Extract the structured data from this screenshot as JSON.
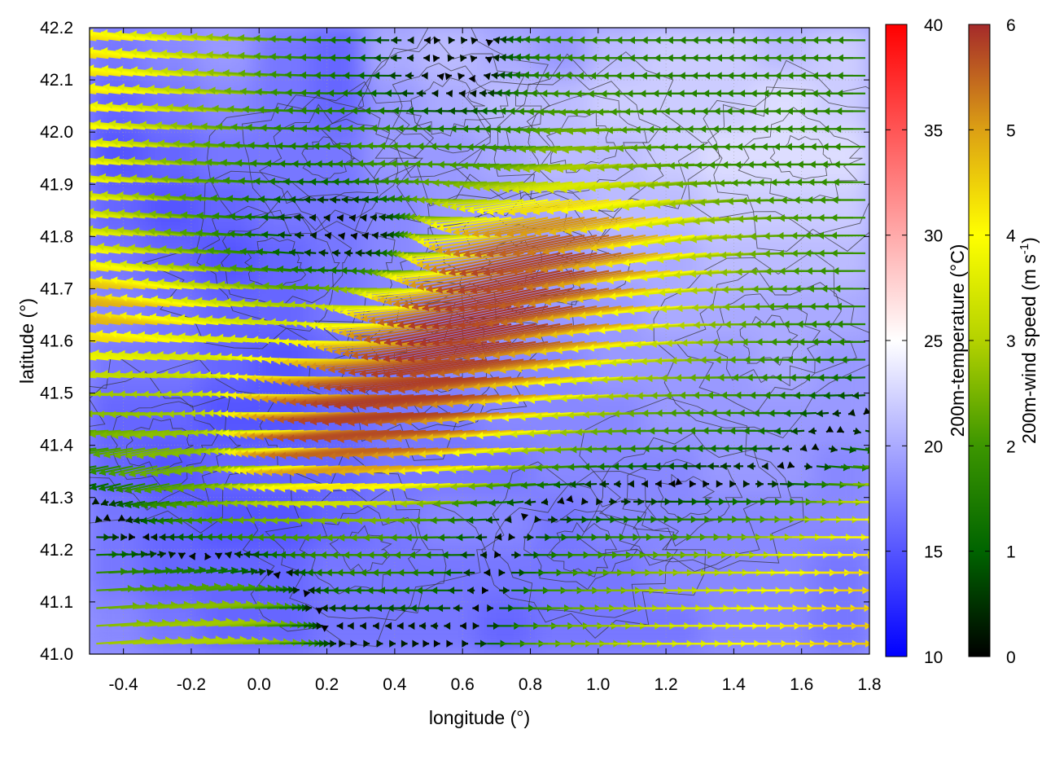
{
  "chart_data": {
    "type": "heatmap",
    "title": "",
    "xlabel": "longitude (°)",
    "ylabel": "latitude (°)",
    "xlim": [
      -0.5,
      1.8
    ],
    "ylim": [
      41.0,
      42.2
    ],
    "x_ticks": [
      "-0.4",
      "-0.2",
      "0.0",
      "0.2",
      "0.4",
      "0.6",
      "0.8",
      "1.0",
      "1.2",
      "1.4",
      "1.6",
      "1.8"
    ],
    "y_ticks": [
      "41.0",
      "41.1",
      "41.2",
      "41.3",
      "41.4",
      "41.5",
      "41.6",
      "41.7",
      "41.8",
      "41.9",
      "42.0",
      "42.1",
      "42.2"
    ],
    "grid": true,
    "layers": [
      "temperature color map",
      "terrain contours",
      "wind vectors"
    ],
    "colorbars": [
      {
        "label": "200m-temperature (°C)",
        "range": [
          10,
          40
        ],
        "ticks": [
          "10",
          "15",
          "20",
          "25",
          "30",
          "35",
          "40"
        ],
        "colors": [
          "#0000ff",
          "#ffffff",
          "#ff0000"
        ]
      },
      {
        "label": "200m-wind speed (m s-1)",
        "label_main": "200m-wind speed (m s",
        "label_sup": "-1",
        "label_tail": ")",
        "range": [
          0,
          6
        ],
        "ticks": [
          "0",
          "1",
          "2",
          "3",
          "4",
          "5",
          "6"
        ],
        "colors": [
          "#000000",
          "#006400",
          "#3c9600",
          "#b4d200",
          "#ffff00",
          "#dca014",
          "#a52a2a"
        ]
      }
    ],
    "temperature_field_approx": [
      [
        17,
        18,
        19,
        17,
        16,
        20,
        21,
        20,
        19,
        21,
        22,
        22,
        21,
        22
      ],
      [
        16,
        17,
        18,
        17,
        16,
        19,
        20,
        21,
        21,
        22,
        22,
        22,
        23,
        22
      ],
      [
        15,
        16,
        17,
        17,
        17,
        19,
        19,
        20,
        21,
        21,
        22,
        23,
        23,
        23
      ],
      [
        16,
        15,
        16,
        17,
        17,
        18,
        19,
        19,
        20,
        21,
        21,
        22,
        22,
        22
      ],
      [
        17,
        16,
        15,
        16,
        17,
        18,
        19,
        19,
        19,
        20,
        20,
        21,
        21,
        21
      ],
      [
        18,
        17,
        16,
        16,
        17,
        18,
        18,
        19,
        19,
        19,
        20,
        20,
        20,
        20
      ],
      [
        17,
        17,
        16,
        15,
        16,
        17,
        18,
        18,
        18,
        19,
        19,
        19,
        20,
        19
      ],
      [
        16,
        16,
        15,
        15,
        16,
        17,
        17,
        18,
        18,
        18,
        19,
        19,
        19,
        19
      ],
      [
        16,
        15,
        16,
        16,
        16,
        17,
        17,
        17,
        18,
        18,
        18,
        19,
        19,
        18
      ],
      [
        17,
        16,
        15,
        15,
        16,
        17,
        18,
        18,
        17,
        18,
        18,
        18,
        18,
        18
      ],
      [
        17,
        16,
        16,
        16,
        17,
        17,
        17,
        17,
        17,
        17,
        18,
        18,
        18,
        17
      ],
      [
        18,
        17,
        16,
        16,
        17,
        17,
        17,
        16,
        17,
        17,
        17,
        18,
        18,
        17
      ]
    ],
    "wind_field_approx": [
      {
        "lon": -0.45,
        "lat": 42.12,
        "u": -4.5,
        "v": 0.6
      },
      {
        "lon": -0.3,
        "lat": 42.12,
        "u": -4.0,
        "v": 0.5
      },
      {
        "lon": -0.15,
        "lat": 42.12,
        "u": -3.5,
        "v": 0.3
      },
      {
        "lon": 0.0,
        "lat": 42.12,
        "u": -2.5,
        "v": 0.2
      },
      {
        "lon": 0.2,
        "lat": 42.12,
        "u": -1.5,
        "v": 0.0
      },
      {
        "lon": 0.4,
        "lat": 42.12,
        "u": -1.0,
        "v": 0.0
      },
      {
        "lon": 0.6,
        "lat": 42.12,
        "u": 1.2,
        "v": 0.0
      },
      {
        "lon": 0.8,
        "lat": 42.12,
        "u": -1.5,
        "v": 0.1
      },
      {
        "lon": 1.0,
        "lat": 42.12,
        "u": -1.8,
        "v": 0.0
      },
      {
        "lon": 1.2,
        "lat": 42.12,
        "u": -1.6,
        "v": 0.0
      },
      {
        "lon": 1.4,
        "lat": 42.12,
        "u": -1.4,
        "v": 0.0
      },
      {
        "lon": 1.6,
        "lat": 42.12,
        "u": -1.8,
        "v": 0.0
      },
      {
        "lon": 1.75,
        "lat": 42.12,
        "u": -1.5,
        "v": 0.0
      },
      {
        "lon": -0.45,
        "lat": 41.95,
        "u": -4.2,
        "v": 0.5
      },
      {
        "lon": -0.3,
        "lat": 41.95,
        "u": -3.5,
        "v": 0.3
      },
      {
        "lon": -0.15,
        "lat": 41.95,
        "u": -2.5,
        "v": 0.2
      },
      {
        "lon": 0.0,
        "lat": 41.95,
        "u": -1.8,
        "v": 0.1
      },
      {
        "lon": 0.2,
        "lat": 41.95,
        "u": -1.2,
        "v": 0.0
      },
      {
        "lon": 0.4,
        "lat": 41.95,
        "u": -2.5,
        "v": 0.1
      },
      {
        "lon": 0.6,
        "lat": 41.95,
        "u": -2.0,
        "v": 0.0
      },
      {
        "lon": 0.8,
        "lat": 41.95,
        "u": -1.5,
        "v": 0.0
      },
      {
        "lon": 1.0,
        "lat": 41.95,
        "u": -3.0,
        "v": -0.3
      },
      {
        "lon": 1.2,
        "lat": 41.95,
        "u": -2.0,
        "v": 0.0
      },
      {
        "lon": 1.4,
        "lat": 41.95,
        "u": -1.8,
        "v": 0.0
      },
      {
        "lon": 1.6,
        "lat": 41.95,
        "u": -1.6,
        "v": 0.0
      },
      {
        "lon": 1.75,
        "lat": 41.95,
        "u": -1.8,
        "v": 0.0
      },
      {
        "lon": -0.45,
        "lat": 41.8,
        "u": -4.0,
        "v": 0.6
      },
      {
        "lon": -0.3,
        "lat": 41.8,
        "u": -2.8,
        "v": 0.3
      },
      {
        "lon": -0.15,
        "lat": 41.8,
        "u": -2.2,
        "v": 0.2
      },
      {
        "lon": 0.0,
        "lat": 41.8,
        "u": -1.0,
        "v": 0.0
      },
      {
        "lon": 0.2,
        "lat": 41.8,
        "u": 0.6,
        "v": 0.0
      },
      {
        "lon": 0.4,
        "lat": 41.8,
        "u": 0.6,
        "v": 0.0
      },
      {
        "lon": 0.6,
        "lat": 41.8,
        "u": -3.0,
        "v": 0.4
      },
      {
        "lon": 0.8,
        "lat": 41.8,
        "u": -5.8,
        "v": -1.4
      },
      {
        "lon": 1.0,
        "lat": 41.8,
        "u": -6.0,
        "v": -1.2
      },
      {
        "lon": 1.2,
        "lat": 41.8,
        "u": -5.0,
        "v": -1.0
      },
      {
        "lon": 1.4,
        "lat": 41.8,
        "u": -3.0,
        "v": -0.3
      },
      {
        "lon": 1.6,
        "lat": 41.8,
        "u": -2.5,
        "v": 0.0
      },
      {
        "lon": 1.75,
        "lat": 41.8,
        "u": -1.8,
        "v": 0.0
      },
      {
        "lon": -0.45,
        "lat": 41.65,
        "u": -5.0,
        "v": 0.8
      },
      {
        "lon": -0.3,
        "lat": 41.65,
        "u": -5.5,
        "v": 0.8
      },
      {
        "lon": -0.15,
        "lat": 41.65,
        "u": -4.0,
        "v": 0.5
      },
      {
        "lon": 0.0,
        "lat": 41.65,
        "u": -3.5,
        "v": 0.4
      },
      {
        "lon": 0.2,
        "lat": 41.65,
        "u": -3.0,
        "v": 0.2
      },
      {
        "lon": 0.4,
        "lat": 41.65,
        "u": -3.8,
        "v": 0.0
      },
      {
        "lon": 0.6,
        "lat": 41.65,
        "u": -6.0,
        "v": -1.2
      },
      {
        "lon": 0.8,
        "lat": 41.65,
        "u": -6.0,
        "v": -1.3
      },
      {
        "lon": 1.0,
        "lat": 41.65,
        "u": -5.5,
        "v": -1.0
      },
      {
        "lon": 1.2,
        "lat": 41.65,
        "u": -4.2,
        "v": -0.4
      },
      {
        "lon": 1.4,
        "lat": 41.65,
        "u": -3.0,
        "v": 0.0
      },
      {
        "lon": 1.6,
        "lat": 41.65,
        "u": -2.0,
        "v": 0.0
      },
      {
        "lon": 1.75,
        "lat": 41.65,
        "u": -1.5,
        "v": 0.0
      },
      {
        "lon": -0.45,
        "lat": 41.5,
        "u": -3.0,
        "v": 0.3
      },
      {
        "lon": -0.3,
        "lat": 41.5,
        "u": -2.5,
        "v": 0.2
      },
      {
        "lon": -0.15,
        "lat": 41.5,
        "u": -2.8,
        "v": 0.2
      },
      {
        "lon": 0.0,
        "lat": 41.5,
        "u": -3.5,
        "v": 0.2
      },
      {
        "lon": 0.2,
        "lat": 41.5,
        "u": -4.5,
        "v": 0.0
      },
      {
        "lon": 0.4,
        "lat": 41.5,
        "u": -6.0,
        "v": -0.5
      },
      {
        "lon": 0.6,
        "lat": 41.5,
        "u": -6.0,
        "v": -0.8
      },
      {
        "lon": 0.8,
        "lat": 41.5,
        "u": -5.5,
        "v": -0.6
      },
      {
        "lon": 1.0,
        "lat": 41.5,
        "u": -4.0,
        "v": -0.3
      },
      {
        "lon": 1.2,
        "lat": 41.5,
        "u": -2.8,
        "v": 0.0
      },
      {
        "lon": 1.4,
        "lat": 41.5,
        "u": -2.2,
        "v": 0.0
      },
      {
        "lon": 1.6,
        "lat": 41.5,
        "u": -1.8,
        "v": 0.0
      },
      {
        "lon": 1.75,
        "lat": 41.5,
        "u": -1.2,
        "v": 0.0
      },
      {
        "lon": -0.45,
        "lat": 41.38,
        "u": -1.5,
        "v": -0.2
      },
      {
        "lon": -0.3,
        "lat": 41.38,
        "u": -3.0,
        "v": -1.0
      },
      {
        "lon": -0.15,
        "lat": 41.38,
        "u": -2.5,
        "v": -0.8
      },
      {
        "lon": 0.0,
        "lat": 41.38,
        "u": -2.0,
        "v": 0.0
      },
      {
        "lon": 0.2,
        "lat": 41.38,
        "u": -6.0,
        "v": -0.6
      },
      {
        "lon": 0.4,
        "lat": 41.38,
        "u": -6.0,
        "v": -0.5
      },
      {
        "lon": 0.6,
        "lat": 41.38,
        "u": -5.5,
        "v": -0.4
      },
      {
        "lon": 0.8,
        "lat": 41.38,
        "u": -4.0,
        "v": -0.2
      },
      {
        "lon": 1.0,
        "lat": 41.38,
        "u": -2.0,
        "v": 0.0
      },
      {
        "lon": 1.2,
        "lat": 41.38,
        "u": -1.5,
        "v": 0.0
      },
      {
        "lon": 1.4,
        "lat": 41.38,
        "u": -1.2,
        "v": 0.0
      },
      {
        "lon": 1.6,
        "lat": 41.38,
        "u": -2.0,
        "v": 0.0
      },
      {
        "lon": 1.75,
        "lat": 41.38,
        "u": 3.5,
        "v": -0.3
      },
      {
        "lon": -0.45,
        "lat": 41.25,
        "u": 1.6,
        "v": 0.0
      },
      {
        "lon": -0.3,
        "lat": 41.25,
        "u": -1.5,
        "v": 0.0
      },
      {
        "lon": -0.15,
        "lat": 41.25,
        "u": -1.8,
        "v": 0.0
      },
      {
        "lon": 0.0,
        "lat": 41.25,
        "u": -3.0,
        "v": 0.0
      },
      {
        "lon": 0.2,
        "lat": 41.25,
        "u": -1.8,
        "v": 0.0
      },
      {
        "lon": 0.4,
        "lat": 41.25,
        "u": -2.0,
        "v": 0.0
      },
      {
        "lon": 0.6,
        "lat": 41.25,
        "u": -1.5,
        "v": 0.0
      },
      {
        "lon": 0.8,
        "lat": 41.25,
        "u": 1.5,
        "v": 0.0
      },
      {
        "lon": 1.0,
        "lat": 41.25,
        "u": 1.8,
        "v": 0.0
      },
      {
        "lon": 1.2,
        "lat": 41.25,
        "u": 2.0,
        "v": 0.0
      },
      {
        "lon": 1.4,
        "lat": 41.25,
        "u": 2.5,
        "v": 0.0
      },
      {
        "lon": 1.6,
        "lat": 41.25,
        "u": 3.5,
        "v": 0.0
      },
      {
        "lon": 1.75,
        "lat": 41.25,
        "u": 4.5,
        "v": 0.0
      },
      {
        "lon": -0.45,
        "lat": 41.1,
        "u": 1.8,
        "v": 0.0
      },
      {
        "lon": -0.3,
        "lat": 41.1,
        "u": 2.5,
        "v": 0.3
      },
      {
        "lon": -0.15,
        "lat": 41.1,
        "u": 3.5,
        "v": 0.5
      },
      {
        "lon": 0.0,
        "lat": 41.1,
        "u": 2.0,
        "v": 0.0
      },
      {
        "lon": 0.2,
        "lat": 41.1,
        "u": -1.6,
        "v": 0.0
      },
      {
        "lon": 0.4,
        "lat": 41.1,
        "u": -2.5,
        "v": 0.0
      },
      {
        "lon": 0.6,
        "lat": 41.1,
        "u": -2.0,
        "v": 0.0
      },
      {
        "lon": 0.8,
        "lat": 41.1,
        "u": 2.0,
        "v": 0.0
      },
      {
        "lon": 1.0,
        "lat": 41.1,
        "u": 2.5,
        "v": 0.0
      },
      {
        "lon": 1.2,
        "lat": 41.1,
        "u": 3.0,
        "v": 0.0
      },
      {
        "lon": 1.4,
        "lat": 41.1,
        "u": 3.8,
        "v": 0.0
      },
      {
        "lon": 1.6,
        "lat": 41.1,
        "u": 4.5,
        "v": 0.0
      },
      {
        "lon": 1.75,
        "lat": 41.1,
        "u": 4.8,
        "v": 0.0
      },
      {
        "lon": -0.4,
        "lat": 41.03,
        "u": 3.5,
        "v": 0.3
      },
      {
        "lon": 0.0,
        "lat": 41.03,
        "u": 3.0,
        "v": 0.0
      },
      {
        "lon": 0.4,
        "lat": 41.03,
        "u": 2.5,
        "v": 0.0
      },
      {
        "lon": 0.8,
        "lat": 41.03,
        "u": 3.0,
        "v": 0.0
      },
      {
        "lon": 1.2,
        "lat": 41.03,
        "u": 4.0,
        "v": 0.0
      },
      {
        "lon": 1.6,
        "lat": 41.03,
        "u": 4.5,
        "v": 0.0
      }
    ]
  }
}
